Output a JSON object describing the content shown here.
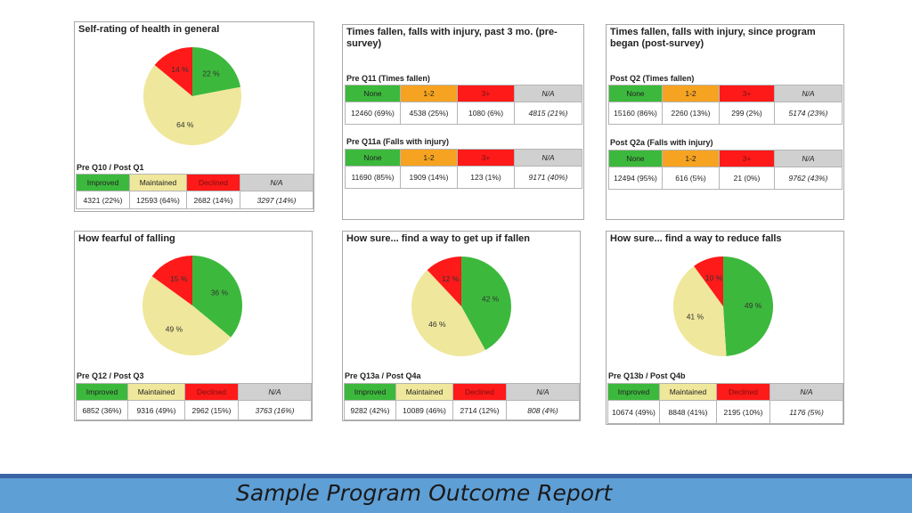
{
  "colors": {
    "green": "#3cb93c",
    "yellow": "#efe79b",
    "red": "#ff1a1a",
    "orange": "#f6a321",
    "gray": "#d0d0d0",
    "footer": "#5e9fd6",
    "footer_line": "#3a64a5"
  },
  "footer": {
    "title": "Sample Program Outcome Report"
  },
  "chart_data": [
    {
      "type": "pie",
      "title": "Self-rating of health in general",
      "question": "Pre Q10 / Post Q1",
      "slices": [
        {
          "name": "Improved",
          "value": 22,
          "label": "22 %"
        },
        {
          "name": "Maintained",
          "value": 64,
          "label": "64 %"
        },
        {
          "name": "Declined",
          "value": 14,
          "label": "14 %"
        }
      ],
      "table": {
        "headers": [
          "Improved",
          "Maintained",
          "Declined",
          "N/A"
        ],
        "values": [
          "4321 (22%)",
          "12593 (64%)",
          "2682 (14%)",
          "3297 (14%)"
        ]
      }
    },
    {
      "type": "table",
      "title": "Times fallen, falls with injury, past 3 mo. (pre-survey)",
      "sections": [
        {
          "label": "Pre Q11 (Times fallen)",
          "headers": [
            "None",
            "1-2",
            "3+",
            "N/A"
          ],
          "values": [
            "12460 (69%)",
            "4538 (25%)",
            "1080 (6%)",
            "4815 (21%)"
          ]
        },
        {
          "label": "Pre Q11a (Falls with injury)",
          "headers": [
            "None",
            "1-2",
            "3+",
            "N/A"
          ],
          "values": [
            "11690 (85%)",
            "1909 (14%)",
            "123 (1%)",
            "9171 (40%)"
          ]
        }
      ]
    },
    {
      "type": "table",
      "title": "Times fallen, falls with injury, since program began (post-survey)",
      "sections": [
        {
          "label": "Post Q2 (Times fallen)",
          "headers": [
            "None",
            "1-2",
            "3+",
            "N/A"
          ],
          "values": [
            "15160 (86%)",
            "2260 (13%)",
            "299 (2%)",
            "5174 (23%)"
          ]
        },
        {
          "label": "Post Q2a (Falls with injury)",
          "headers": [
            "None",
            "1-2",
            "3+",
            "N/A"
          ],
          "values": [
            "12494 (95%)",
            "616 (5%)",
            "21 (0%)",
            "9762 (43%)"
          ]
        }
      ]
    },
    {
      "type": "pie",
      "title": "How fearful of falling",
      "question": "Pre Q12 / Post Q3",
      "slices": [
        {
          "name": "Improved",
          "value": 36,
          "label": "36 %"
        },
        {
          "name": "Maintained",
          "value": 49,
          "label": "49 %"
        },
        {
          "name": "Declined",
          "value": 15,
          "label": "15 %"
        }
      ],
      "table": {
        "headers": [
          "Improved",
          "Maintained",
          "Declined",
          "N/A"
        ],
        "values": [
          "6852 (36%)",
          "9316 (49%)",
          "2962 (15%)",
          "3763 (16%)"
        ]
      }
    },
    {
      "type": "pie",
      "title": "How sure... find a way to get up if fallen",
      "question": "Pre Q13a / Post Q4a",
      "slices": [
        {
          "name": "Improved",
          "value": 42,
          "label": "42 %"
        },
        {
          "name": "Maintained",
          "value": 46,
          "label": "46 %"
        },
        {
          "name": "Declined",
          "value": 12,
          "label": "12 %"
        }
      ],
      "table": {
        "headers": [
          "Improved",
          "Maintained",
          "Declined",
          "N/A"
        ],
        "values": [
          "9282 (42%)",
          "10089 (46%)",
          "2714 (12%)",
          "808 (4%)"
        ]
      }
    },
    {
      "type": "pie",
      "title": "How sure... find a way to reduce falls",
      "question": "Pre Q13b / Post Q4b",
      "slices": [
        {
          "name": "Improved",
          "value": 49,
          "label": "49 %"
        },
        {
          "name": "Maintained",
          "value": 41,
          "label": "41 %"
        },
        {
          "name": "Declined",
          "value": 10,
          "label": "10 %"
        }
      ],
      "table": {
        "headers": [
          "Improved",
          "Maintained",
          "Declined",
          "N/A"
        ],
        "values": [
          "10674 (49%)",
          "8848 (41%)",
          "2195 (10%)",
          "1176 (5%)"
        ]
      }
    }
  ]
}
